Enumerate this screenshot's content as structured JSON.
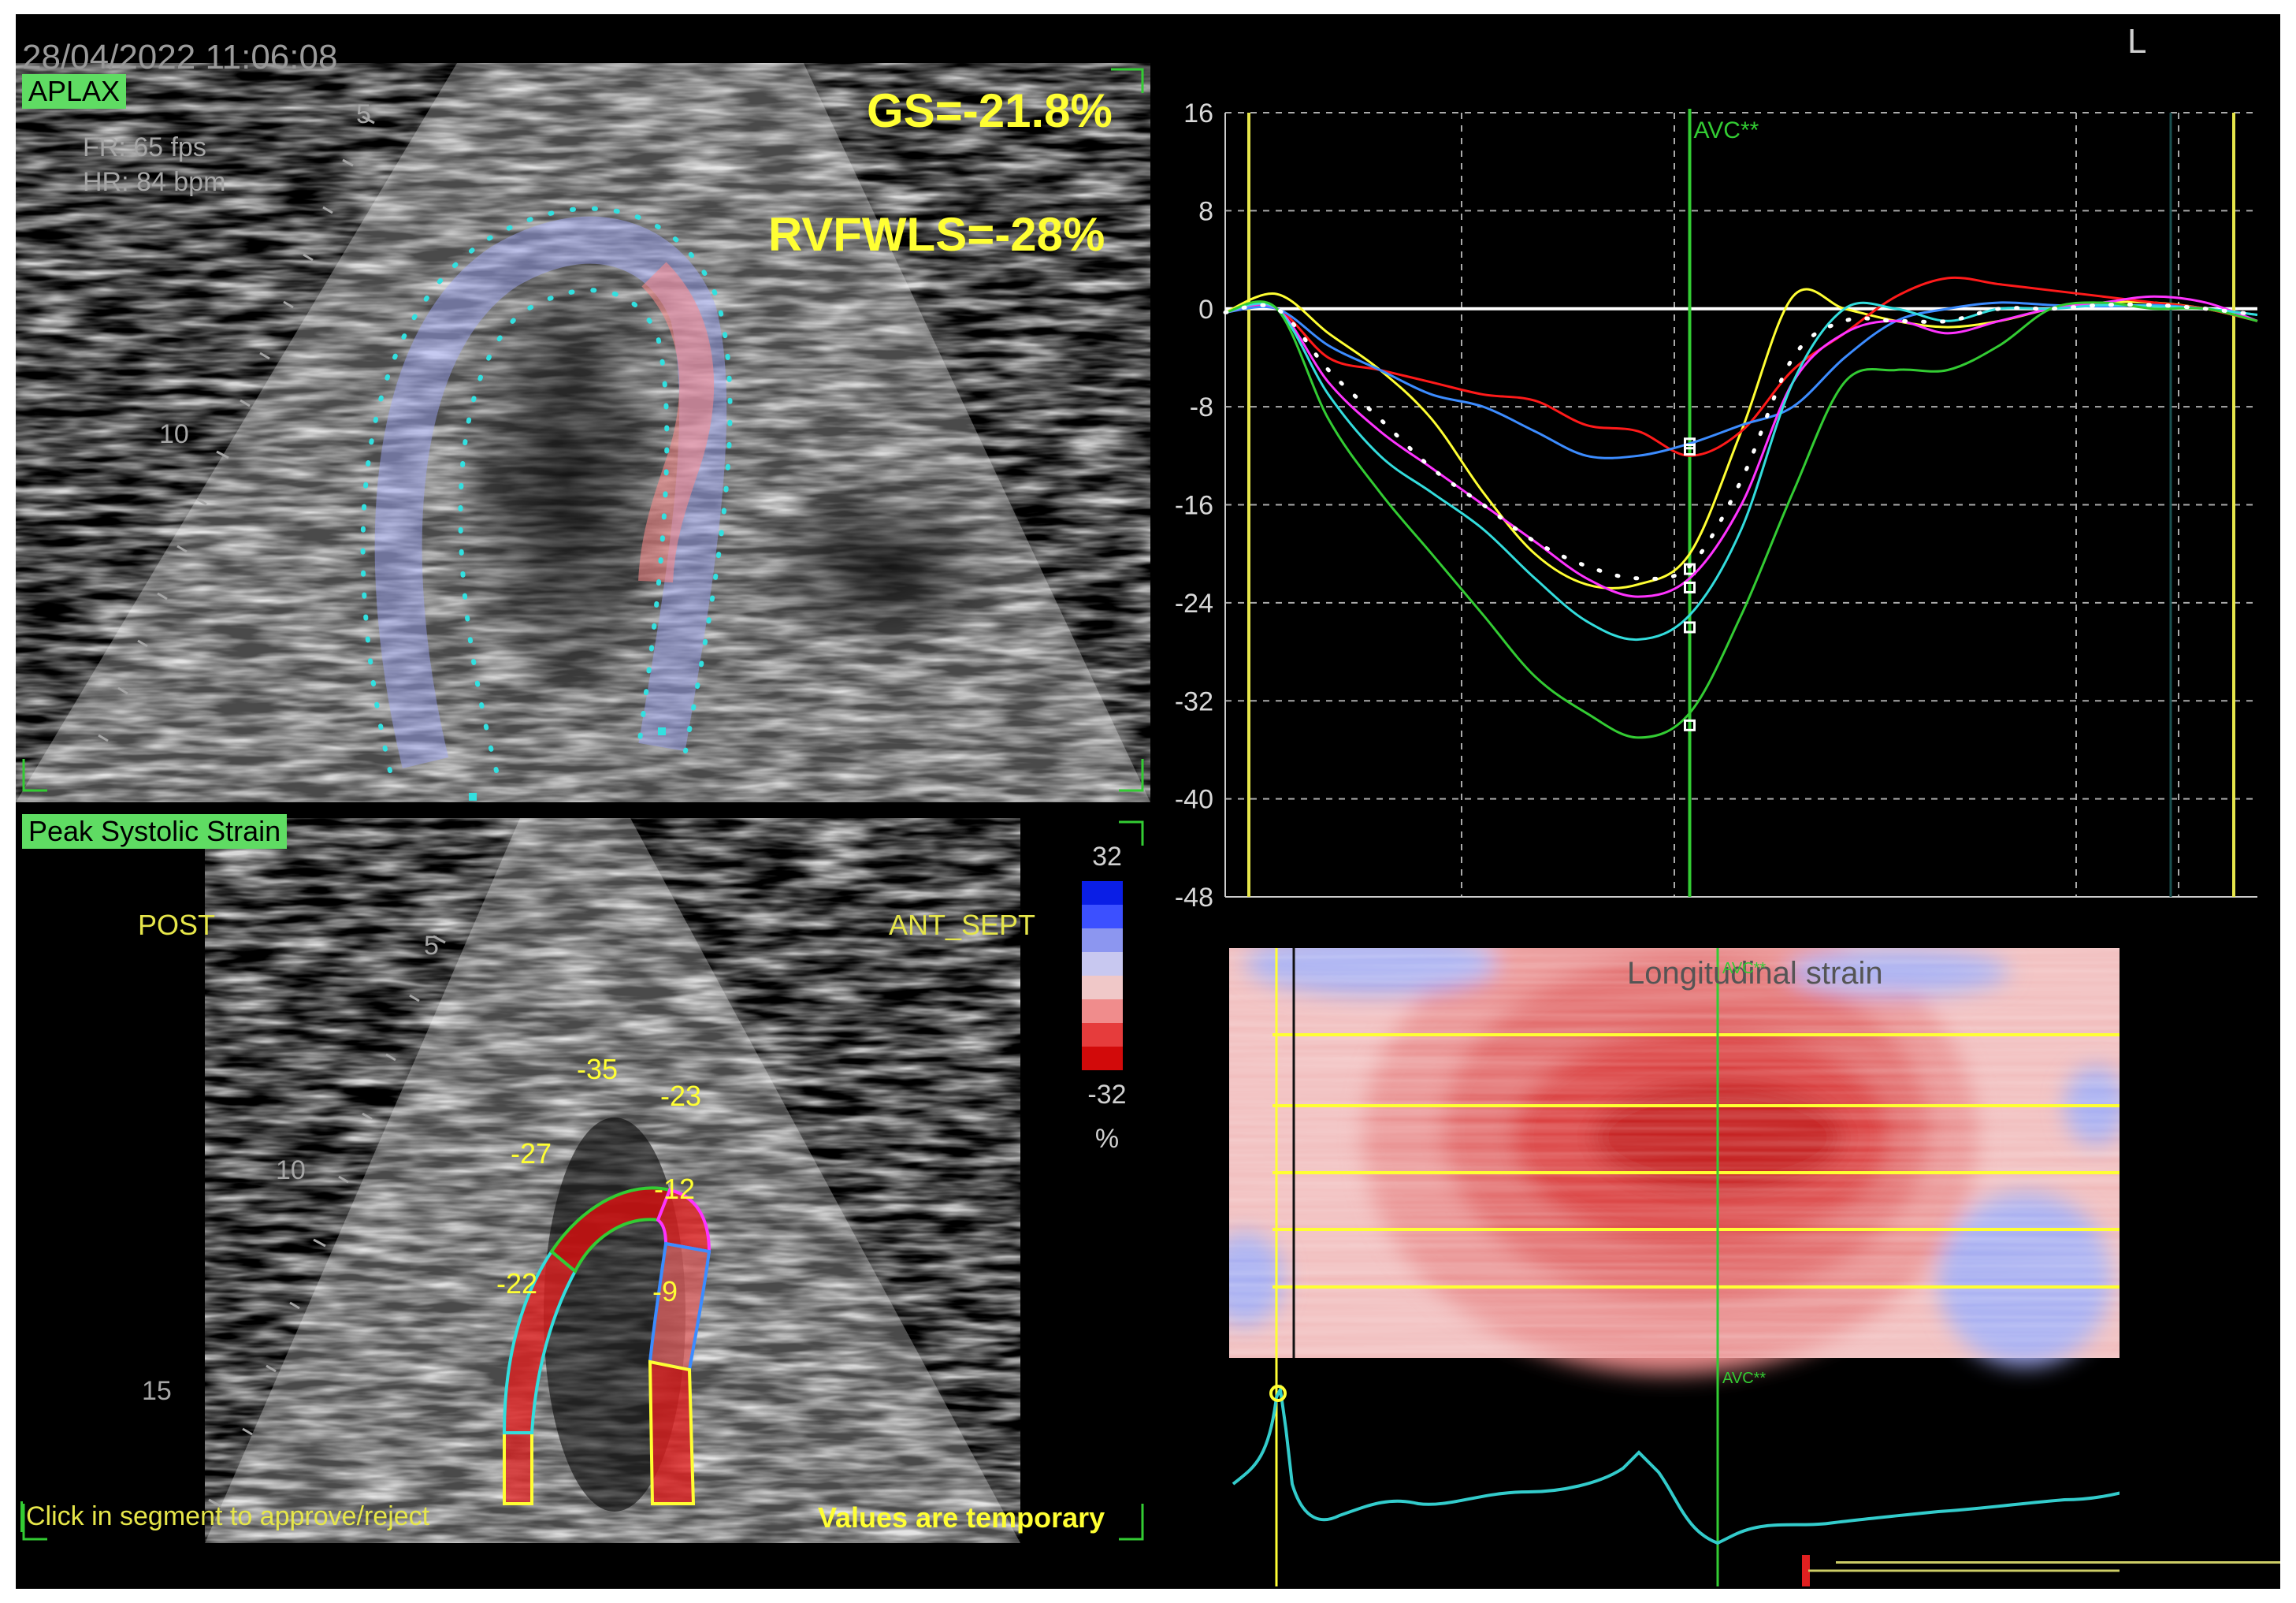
{
  "header": {
    "timestamp": "28/04/2022 11:06:08",
    "view_label": "APLAX",
    "frame_rate": "FR: 65 fps",
    "heart_rate": "HR: 84 bpm",
    "corner_letter": "L"
  },
  "results": {
    "gs": "GS=-21.8%",
    "rvfwls": "RVFWLS=-28%"
  },
  "echo_top": {
    "depth_marks": [
      "5",
      "10"
    ]
  },
  "bullseye_panel": {
    "title": "Peak Systolic Strain",
    "left_wall": "POST",
    "right_wall": "ANT_SEPT",
    "depth_marks": [
      "5",
      "10",
      "15"
    ],
    "segment_values": [
      "-35",
      "-23",
      "-27",
      "-12",
      "-22",
      "-9"
    ],
    "footer_left": "Click in segment to approve/reject",
    "footer_right": "Values are temporary"
  },
  "colorbar": {
    "max": "32",
    "min": "-32",
    "unit": "%",
    "colors": [
      "#0a1ee6",
      "#3c50ff",
      "#8c96f0",
      "#c8c8f0",
      "#f0c8c8",
      "#f08c8c",
      "#e63c3c",
      "#d20a0a"
    ]
  },
  "chart_data": {
    "type": "line",
    "xlabel": "",
    "ylabel": "",
    "ylim": [
      -48,
      16
    ],
    "yticks": [
      "16",
      "8",
      "0",
      "-8",
      "-16",
      "-24",
      "-32",
      "-40",
      "-48"
    ],
    "marker_label": "AVC**",
    "x": [
      0,
      5,
      10,
      15,
      20,
      25,
      30,
      35,
      40,
      45,
      50,
      55,
      60,
      65,
      70,
      75,
      80,
      85,
      90,
      95,
      100
    ],
    "series": [
      {
        "color": "#ffff33",
        "values": [
          -0.3,
          1.2,
          -2,
          -5,
          -9,
          -15,
          -20,
          -22.5,
          -22.5,
          -20,
          -10,
          1,
          0,
          -1,
          -1.5,
          -1,
          0,
          0.5,
          0.5,
          0,
          -1
        ]
      },
      {
        "color": "#ff1a1a",
        "values": [
          -0.3,
          0,
          -4,
          -5,
          -6,
          -7,
          -7.5,
          -9.5,
          -10,
          -12,
          -10,
          -5,
          -2,
          1,
          2.5,
          2,
          1.5,
          1,
          0.5,
          0,
          -1
        ]
      },
      {
        "color": "#3c8cff",
        "values": [
          -0.3,
          0,
          -3,
          -5,
          -7,
          -8,
          -10,
          -12,
          -12,
          -11,
          -9.5,
          -8,
          -4,
          -1,
          0,
          0.5,
          0.3,
          0.2,
          0.3,
          0,
          -0.5
        ]
      },
      {
        "color": "#ff33ff",
        "values": [
          -0.3,
          0,
          -6,
          -10,
          -13,
          -16,
          -19,
          -22,
          -23.5,
          -22,
          -16,
          -6,
          -2,
          -1,
          -2,
          -1,
          0,
          0.5,
          1,
          0.5,
          -1
        ]
      },
      {
        "color": "#33dddd",
        "values": [
          -0.3,
          0,
          -7,
          -12,
          -15,
          -18,
          -22,
          -25.5,
          -27,
          -25,
          -18,
          -6,
          0,
          0,
          -1,
          0,
          0,
          0.3,
          0.2,
          0,
          -0.5
        ]
      },
      {
        "color": "#33cc33",
        "values": [
          -0.3,
          0,
          -9,
          -15,
          -20,
          -25,
          -30,
          -33,
          -35,
          -33,
          -25,
          -15,
          -6,
          -5,
          -5,
          -3,
          0,
          0.5,
          0,
          0,
          -1
        ]
      },
      {
        "color": "#ffffff",
        "dotted": true,
        "values": [
          -0.3,
          0,
          -5,
          -9,
          -13,
          -16,
          -19,
          -21,
          -22,
          -21,
          -14,
          -4,
          -1,
          -1,
          -1,
          0,
          0,
          0.3,
          0.3,
          0,
          -0.5
        ]
      }
    ]
  },
  "strain_map": {
    "title": "Longitudinal strain",
    "marker_label": "AVC**"
  }
}
